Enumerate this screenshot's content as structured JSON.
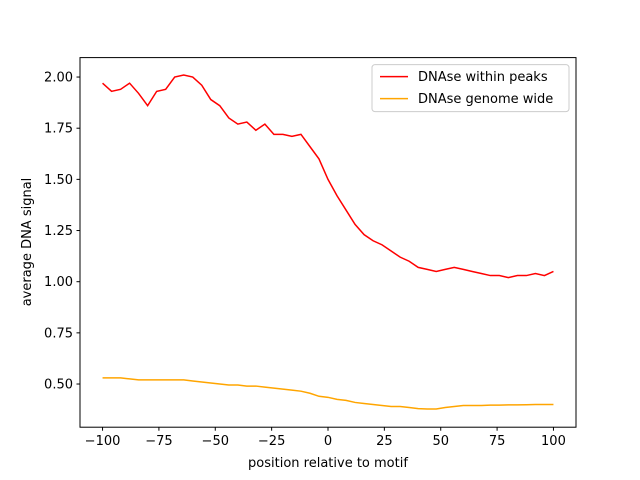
{
  "chart_data": {
    "type": "line",
    "xlabel": "position relative to motif",
    "ylabel": "average DNA signal",
    "x": [
      -100,
      -96,
      -92,
      -88,
      -84,
      -80,
      -76,
      -72,
      -68,
      -64,
      -60,
      -56,
      -52,
      -48,
      -44,
      -40,
      -36,
      -32,
      -28,
      -24,
      -20,
      -16,
      -12,
      -8,
      -4,
      0,
      4,
      8,
      12,
      16,
      20,
      24,
      28,
      32,
      36,
      40,
      44,
      48,
      52,
      56,
      60,
      64,
      68,
      72,
      76,
      80,
      84,
      88,
      92,
      96,
      100
    ],
    "series": [
      {
        "name": "DNAse within peaks",
        "color": "#ff0000",
        "values": [
          1.97,
          1.93,
          1.94,
          1.97,
          1.92,
          1.86,
          1.93,
          1.94,
          2.0,
          2.01,
          2.0,
          1.96,
          1.89,
          1.86,
          1.8,
          1.77,
          1.78,
          1.74,
          1.77,
          1.72,
          1.72,
          1.71,
          1.72,
          1.66,
          1.6,
          1.5,
          1.42,
          1.35,
          1.28,
          1.23,
          1.2,
          1.18,
          1.15,
          1.12,
          1.1,
          1.07,
          1.06,
          1.05,
          1.06,
          1.07,
          1.06,
          1.05,
          1.04,
          1.03,
          1.03,
          1.02,
          1.03,
          1.03,
          1.04,
          1.03,
          1.05
        ]
      },
      {
        "name": "DNAse genome wide",
        "color": "#ffa500",
        "values": [
          0.53,
          0.53,
          0.53,
          0.525,
          0.52,
          0.52,
          0.52,
          0.52,
          0.52,
          0.52,
          0.515,
          0.51,
          0.505,
          0.5,
          0.495,
          0.495,
          0.49,
          0.49,
          0.485,
          0.48,
          0.475,
          0.47,
          0.465,
          0.455,
          0.44,
          0.435,
          0.425,
          0.42,
          0.41,
          0.405,
          0.4,
          0.395,
          0.39,
          0.39,
          0.385,
          0.38,
          0.378,
          0.378,
          0.385,
          0.39,
          0.395,
          0.395,
          0.395,
          0.397,
          0.397,
          0.398,
          0.398,
          0.399,
          0.4,
          0.4,
          0.4
        ]
      }
    ],
    "xlim": [
      -110,
      110
    ],
    "xticks": [
      {
        "value": -100,
        "label": "−100"
      },
      {
        "value": -75,
        "label": "−75"
      },
      {
        "value": -50,
        "label": "−50"
      },
      {
        "value": -25,
        "label": "−25"
      },
      0,
      25,
      50,
      75,
      100
    ],
    "ylim": [
      0.289,
      2.095
    ],
    "yticks": [
      {
        "value": 0.5,
        "label": "0.50"
      },
      {
        "value": 0.75,
        "label": "0.75"
      },
      {
        "value": 1.0,
        "label": "1.00"
      },
      {
        "value": 1.25,
        "label": "1.25"
      },
      {
        "value": 1.5,
        "label": "1.50"
      },
      {
        "value": 1.75,
        "label": "1.75"
      },
      {
        "value": 2.0,
        "label": "2.00"
      }
    ],
    "legend": "upper right",
    "grid": false
  }
}
